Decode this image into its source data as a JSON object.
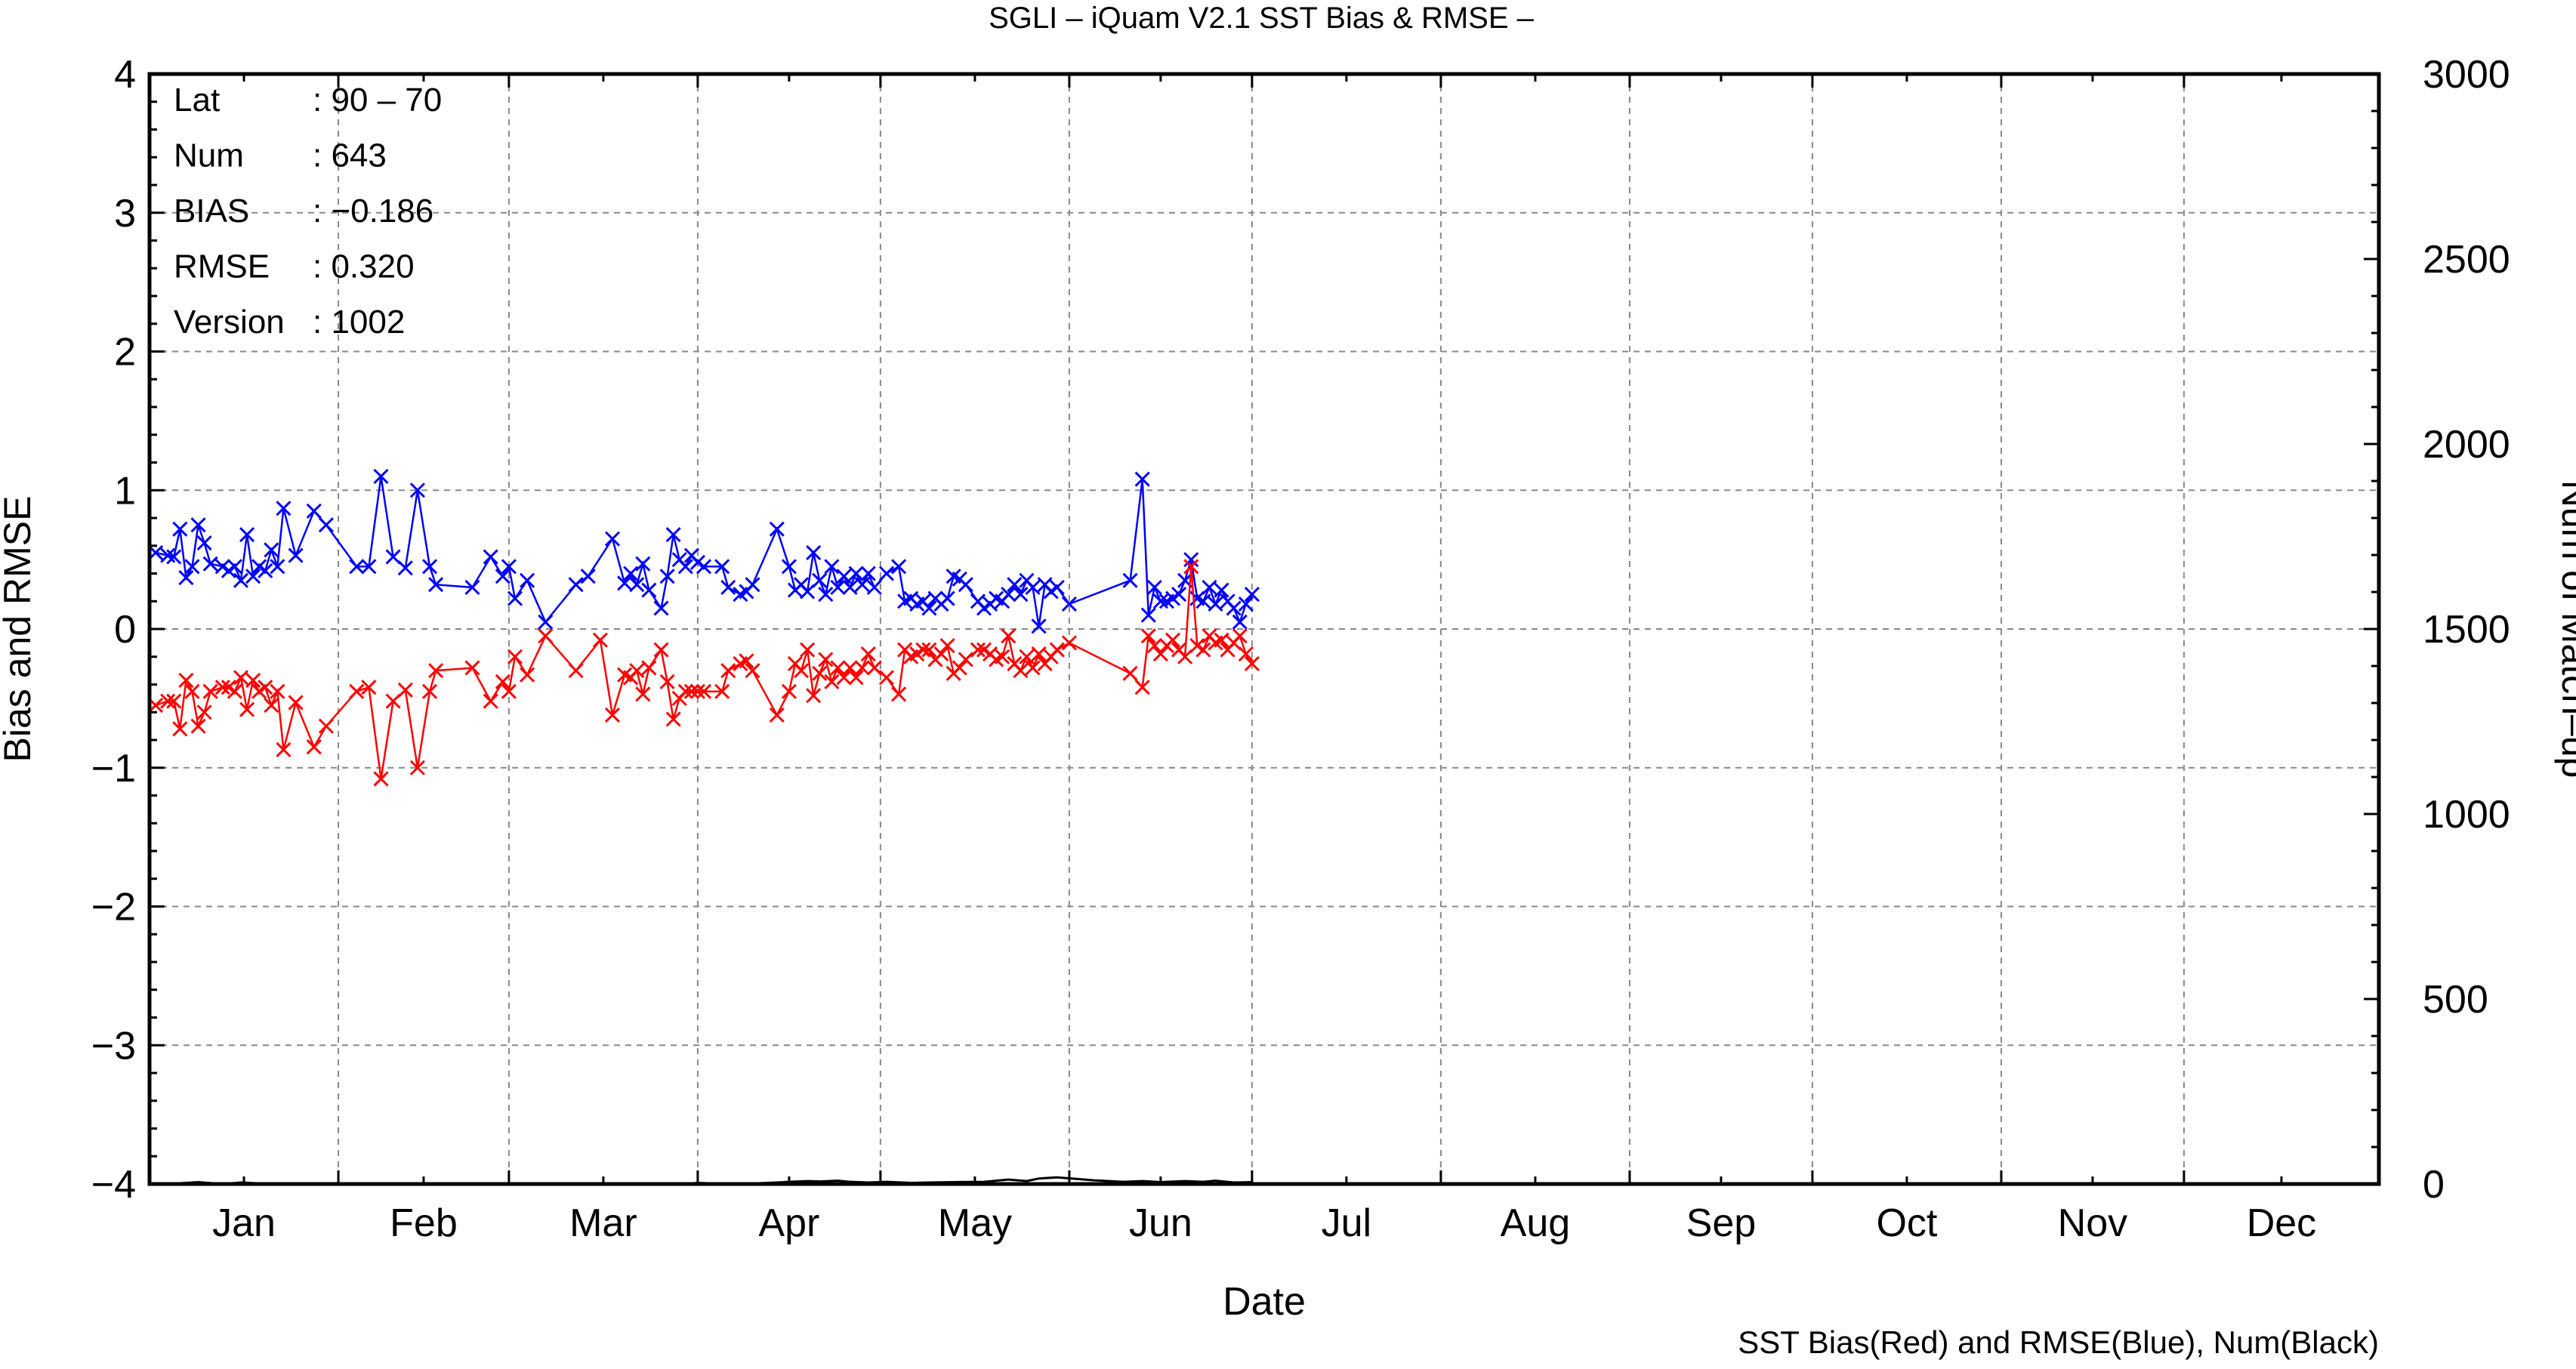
{
  "chart_data": {
    "type": "line",
    "title": "SGLI – iQuam V2.1 SST Bias & RMSE  –",
    "xlabel": "Date",
    "ylabel_left": "Bias and RMSE",
    "ylabel_right": "Num of Match–up",
    "footer": "SST Bias(Red) and RMSE(Blue), Num(Black)",
    "ylim_left": [
      -4,
      4
    ],
    "ylim_right": [
      0,
      3000
    ],
    "xlim_days": [
      0,
      366
    ],
    "grid": true,
    "left_ticks": [
      {
        "v": 4,
        "label": "4"
      },
      {
        "v": 3,
        "label": "3"
      },
      {
        "v": 2,
        "label": "2"
      },
      {
        "v": 1,
        "label": "1"
      },
      {
        "v": 0,
        "label": "0"
      },
      {
        "v": -1,
        "label": "−1"
      },
      {
        "v": -2,
        "label": "−2"
      },
      {
        "v": -3,
        "label": "−3"
      },
      {
        "v": -4,
        "label": "−4"
      }
    ],
    "right_ticks": [
      {
        "v": 3000,
        "label": "3000"
      },
      {
        "v": 2500,
        "label": "2500"
      },
      {
        "v": 2000,
        "label": "2000"
      },
      {
        "v": 1500,
        "label": "1500"
      },
      {
        "v": 1000,
        "label": "1000"
      },
      {
        "v": 500,
        "label": "500"
      },
      {
        "v": 0,
        "label": "0"
      }
    ],
    "months": [
      {
        "label": "Jan",
        "start": 0,
        "end": 31
      },
      {
        "label": "Feb",
        "start": 31,
        "end": 59
      },
      {
        "label": "Mar",
        "start": 59,
        "end": 90
      },
      {
        "label": "Apr",
        "start": 90,
        "end": 120
      },
      {
        "label": "May",
        "start": 120,
        "end": 151
      },
      {
        "label": "Jun",
        "start": 151,
        "end": 181
      },
      {
        "label": "Jul",
        "start": 181,
        "end": 212
      },
      {
        "label": "Aug",
        "start": 212,
        "end": 243
      },
      {
        "label": "Sep",
        "start": 243,
        "end": 273
      },
      {
        "label": "Oct",
        "start": 273,
        "end": 304
      },
      {
        "label": "Nov",
        "start": 304,
        "end": 334
      },
      {
        "label": "Dec",
        "start": 334,
        "end": 366
      }
    ],
    "stats": [
      {
        "key": "Lat",
        "value": ": 90 – 70"
      },
      {
        "key": "Num",
        "value": ": 643"
      },
      {
        "key": "BIAS",
        "value": ": −0.186"
      },
      {
        "key": "RMSE",
        "value": ": 0.320"
      },
      {
        "key": "Version",
        "value": ": 1002"
      }
    ],
    "series": [
      {
        "color": "#0000ff",
        "points": [
          [
            1,
            0.55
          ],
          [
            3,
            0.53
          ],
          [
            4,
            0.52
          ],
          [
            5,
            0.72
          ],
          [
            6,
            0.37
          ],
          [
            7,
            0.45
          ],
          [
            8,
            0.75
          ],
          [
            9,
            0.62
          ],
          [
            10,
            0.47
          ],
          [
            12,
            0.45
          ],
          [
            13,
            0.42
          ],
          [
            14,
            0.45
          ],
          [
            15,
            0.35
          ],
          [
            16,
            0.68
          ],
          [
            17,
            0.38
          ],
          [
            18,
            0.45
          ],
          [
            19,
            0.42
          ],
          [
            20,
            0.57
          ],
          [
            21,
            0.45
          ],
          [
            22,
            0.87
          ],
          [
            24,
            0.53
          ],
          [
            27,
            0.85
          ],
          [
            29,
            0.75
          ],
          [
            34,
            0.45
          ],
          [
            36,
            0.45
          ],
          [
            38,
            1.1
          ],
          [
            40,
            0.52
          ],
          [
            42,
            0.44
          ],
          [
            44,
            1.0
          ],
          [
            46,
            0.45
          ],
          [
            47,
            0.32
          ],
          [
            53,
            0.3
          ],
          [
            56,
            0.52
          ],
          [
            58,
            0.38
          ],
          [
            59,
            0.45
          ],
          [
            60,
            0.22
          ],
          [
            62,
            0.35
          ],
          [
            65,
            0.05
          ],
          [
            70,
            0.32
          ],
          [
            72,
            0.38
          ],
          [
            76,
            0.65
          ],
          [
            78,
            0.33
          ],
          [
            79,
            0.4
          ],
          [
            80,
            0.32
          ],
          [
            81,
            0.47
          ],
          [
            82,
            0.28
          ],
          [
            84,
            0.15
          ],
          [
            85,
            0.38
          ],
          [
            86,
            0.68
          ],
          [
            87,
            0.5
          ],
          [
            88,
            0.45
          ],
          [
            89,
            0.53
          ],
          [
            90,
            0.48
          ],
          [
            91,
            0.45
          ],
          [
            94,
            0.45
          ],
          [
            95,
            0.3
          ],
          [
            97,
            0.25
          ],
          [
            98,
            0.27
          ],
          [
            99,
            0.32
          ],
          [
            103,
            0.72
          ],
          [
            105,
            0.45
          ],
          [
            106,
            0.28
          ],
          [
            107,
            0.32
          ],
          [
            108,
            0.27
          ],
          [
            109,
            0.55
          ],
          [
            110,
            0.35
          ],
          [
            111,
            0.25
          ],
          [
            112,
            0.45
          ],
          [
            113,
            0.3
          ],
          [
            114,
            0.38
          ],
          [
            115,
            0.3
          ],
          [
            116,
            0.4
          ],
          [
            117,
            0.32
          ],
          [
            118,
            0.4
          ],
          [
            119,
            0.3
          ],
          [
            121,
            0.4
          ],
          [
            123,
            0.45
          ],
          [
            124,
            0.2
          ],
          [
            125,
            0.22
          ],
          [
            126,
            0.18
          ],
          [
            127,
            0.2
          ],
          [
            128,
            0.15
          ],
          [
            129,
            0.22
          ],
          [
            130,
            0.18
          ],
          [
            131,
            0.22
          ],
          [
            132,
            0.38
          ],
          [
            133,
            0.36
          ],
          [
            134,
            0.32
          ],
          [
            136,
            0.2
          ],
          [
            137,
            0.15
          ],
          [
            138,
            0.18
          ],
          [
            139,
            0.22
          ],
          [
            140,
            0.2
          ],
          [
            141,
            0.25
          ],
          [
            142,
            0.32
          ],
          [
            143,
            0.25
          ],
          [
            144,
            0.35
          ],
          [
            145,
            0.3
          ],
          [
            146,
            0.02
          ],
          [
            147,
            0.32
          ],
          [
            148,
            0.27
          ],
          [
            149,
            0.3
          ],
          [
            151,
            0.18
          ],
          [
            161,
            0.35
          ],
          [
            163,
            1.08
          ],
          [
            164,
            0.1
          ],
          [
            165,
            0.3
          ],
          [
            166,
            0.2
          ],
          [
            167,
            0.2
          ],
          [
            168,
            0.22
          ],
          [
            169,
            0.25
          ],
          [
            170,
            0.35
          ],
          [
            171,
            0.5
          ],
          [
            172,
            0.22
          ],
          [
            173,
            0.2
          ],
          [
            174,
            0.3
          ],
          [
            175,
            0.18
          ],
          [
            176,
            0.28
          ],
          [
            177,
            0.2
          ],
          [
            178,
            0.15
          ],
          [
            179,
            0.05
          ],
          [
            180,
            0.18
          ],
          [
            181,
            0.25
          ]
        ]
      },
      {
        "color": "#ff0000",
        "points": [
          [
            1,
            -0.55
          ],
          [
            3,
            -0.52
          ],
          [
            4,
            -0.52
          ],
          [
            5,
            -0.72
          ],
          [
            6,
            -0.37
          ],
          [
            7,
            -0.45
          ],
          [
            8,
            -0.7
          ],
          [
            9,
            -0.6
          ],
          [
            10,
            -0.45
          ],
          [
            12,
            -0.42
          ],
          [
            13,
            -0.42
          ],
          [
            14,
            -0.45
          ],
          [
            15,
            -0.35
          ],
          [
            16,
            -0.58
          ],
          [
            17,
            -0.37
          ],
          [
            18,
            -0.45
          ],
          [
            19,
            -0.42
          ],
          [
            20,
            -0.55
          ],
          [
            21,
            -0.45
          ],
          [
            22,
            -0.87
          ],
          [
            24,
            -0.53
          ],
          [
            27,
            -0.85
          ],
          [
            29,
            -0.7
          ],
          [
            34,
            -0.45
          ],
          [
            36,
            -0.42
          ],
          [
            38,
            -1.08
          ],
          [
            40,
            -0.52
          ],
          [
            42,
            -0.44
          ],
          [
            44,
            -1.0
          ],
          [
            46,
            -0.45
          ],
          [
            47,
            -0.3
          ],
          [
            53,
            -0.28
          ],
          [
            56,
            -0.52
          ],
          [
            58,
            -0.38
          ],
          [
            59,
            -0.45
          ],
          [
            60,
            -0.2
          ],
          [
            62,
            -0.33
          ],
          [
            65,
            -0.05
          ],
          [
            70,
            -0.3
          ],
          [
            74,
            -0.08
          ],
          [
            76,
            -0.62
          ],
          [
            78,
            -0.33
          ],
          [
            79,
            -0.35
          ],
          [
            80,
            -0.3
          ],
          [
            81,
            -0.47
          ],
          [
            82,
            -0.28
          ],
          [
            84,
            -0.15
          ],
          [
            85,
            -0.38
          ],
          [
            86,
            -0.65
          ],
          [
            87,
            -0.5
          ],
          [
            88,
            -0.45
          ],
          [
            89,
            -0.45
          ],
          [
            90,
            -0.45
          ],
          [
            91,
            -0.45
          ],
          [
            94,
            -0.45
          ],
          [
            95,
            -0.3
          ],
          [
            97,
            -0.25
          ],
          [
            98,
            -0.23
          ],
          [
            99,
            -0.3
          ],
          [
            103,
            -0.62
          ],
          [
            105,
            -0.45
          ],
          [
            106,
            -0.25
          ],
          [
            107,
            -0.3
          ],
          [
            108,
            -0.15
          ],
          [
            109,
            -0.48
          ],
          [
            110,
            -0.32
          ],
          [
            111,
            -0.22
          ],
          [
            112,
            -0.38
          ],
          [
            113,
            -0.28
          ],
          [
            114,
            -0.35
          ],
          [
            115,
            -0.28
          ],
          [
            116,
            -0.35
          ],
          [
            117,
            -0.28
          ],
          [
            118,
            -0.18
          ],
          [
            119,
            -0.28
          ],
          [
            121,
            -0.35
          ],
          [
            123,
            -0.47
          ],
          [
            124,
            -0.15
          ],
          [
            125,
            -0.2
          ],
          [
            126,
            -0.18
          ],
          [
            127,
            -0.15
          ],
          [
            128,
            -0.15
          ],
          [
            129,
            -0.22
          ],
          [
            130,
            -0.18
          ],
          [
            131,
            -0.12
          ],
          [
            132,
            -0.32
          ],
          [
            133,
            -0.28
          ],
          [
            134,
            -0.22
          ],
          [
            136,
            -0.15
          ],
          [
            137,
            -0.15
          ],
          [
            138,
            -0.18
          ],
          [
            139,
            -0.22
          ],
          [
            140,
            -0.2
          ],
          [
            141,
            -0.05
          ],
          [
            142,
            -0.25
          ],
          [
            143,
            -0.3
          ],
          [
            144,
            -0.2
          ],
          [
            145,
            -0.28
          ],
          [
            146,
            -0.18
          ],
          [
            147,
            -0.25
          ],
          [
            148,
            -0.2
          ],
          [
            149,
            -0.15
          ],
          [
            151,
            -0.1
          ],
          [
            161,
            -0.32
          ],
          [
            163,
            -0.42
          ],
          [
            164,
            -0.05
          ],
          [
            165,
            -0.12
          ],
          [
            166,
            -0.18
          ],
          [
            167,
            -0.12
          ],
          [
            168,
            -0.08
          ],
          [
            169,
            -0.15
          ],
          [
            170,
            -0.2
          ],
          [
            171,
            0.45
          ],
          [
            172,
            -0.12
          ],
          [
            173,
            -0.15
          ],
          [
            174,
            -0.05
          ],
          [
            175,
            -0.1
          ],
          [
            176,
            -0.08
          ],
          [
            177,
            -0.15
          ],
          [
            178,
            -0.1
          ],
          [
            179,
            -0.05
          ],
          [
            180,
            -0.18
          ],
          [
            181,
            -0.25
          ]
        ]
      },
      {
        "color": "#000000",
        "points": [
          [
            5,
            2
          ],
          [
            8,
            5
          ],
          [
            12,
            0
          ],
          [
            15,
            4
          ],
          [
            20,
            0
          ],
          [
            88,
            0
          ],
          [
            90,
            3
          ],
          [
            95,
            0
          ],
          [
            100,
            2
          ],
          [
            103,
            4
          ],
          [
            105,
            6
          ],
          [
            108,
            8
          ],
          [
            110,
            7
          ],
          [
            113,
            9
          ],
          [
            115,
            6
          ],
          [
            118,
            4
          ],
          [
            121,
            6
          ],
          [
            125,
            3
          ],
          [
            128,
            4
          ],
          [
            132,
            5
          ],
          [
            137,
            6
          ],
          [
            141,
            12
          ],
          [
            144,
            8
          ],
          [
            146,
            15
          ],
          [
            149,
            18
          ],
          [
            152,
            14
          ],
          [
            155,
            10
          ],
          [
            160,
            6
          ],
          [
            163,
            8
          ],
          [
            166,
            5
          ],
          [
            170,
            8
          ],
          [
            173,
            6
          ],
          [
            175,
            9
          ],
          [
            178,
            4
          ],
          [
            181,
            5
          ]
        ]
      }
    ]
  }
}
